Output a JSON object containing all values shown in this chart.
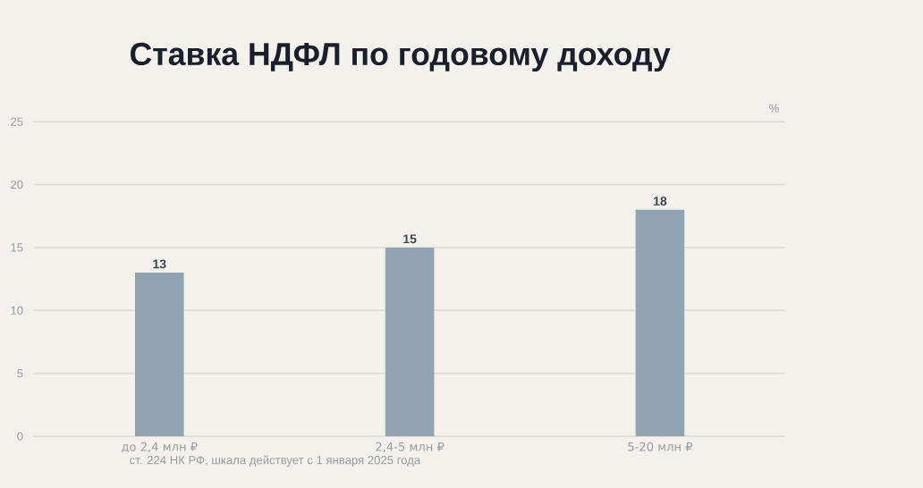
{
  "chart_data": {
    "type": "bar",
    "title": "Ставка НДФЛ по годовому доходу",
    "ylabel": "%",
    "categories": [
      "до 2,4 млн ₽",
      "2,4-5 млн ₽",
      "5-20 млн ₽"
    ],
    "values": [
      13,
      15,
      18
    ],
    "color": "#8fa3b3",
    "ylim": [
      0,
      25
    ],
    "yticks": [
      0,
      5,
      10,
      15,
      20,
      25
    ],
    "grid": "y",
    "data_labels": true,
    "annotations": [
      "ст. 224 НК РФ, шкала действует с 1 января 2025 года"
    ]
  }
}
